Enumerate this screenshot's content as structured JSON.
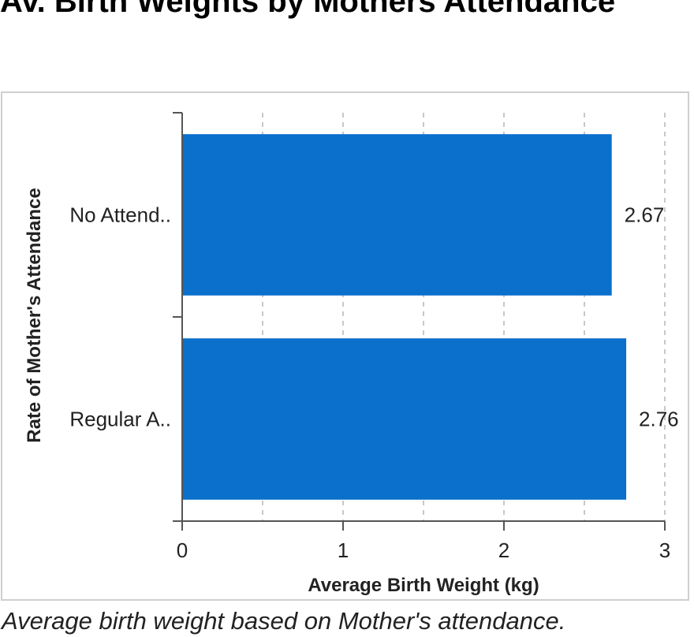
{
  "title": "Av. Birth Weights by Mothers Attendance",
  "caption": "Average birth weight based on Mother's attendance.",
  "chart_data": {
    "type": "bar",
    "orientation": "horizontal",
    "categories": [
      "No Attend..",
      "Regular A.."
    ],
    "values": [
      2.67,
      2.76
    ],
    "data_labels": [
      "2.67",
      "2.76"
    ],
    "xlabel": "Average Birth Weight (kg)",
    "ylabel": "Rate of Mother's Attendance",
    "xlim": [
      0,
      3
    ],
    "xticks": [
      0,
      1,
      2,
      3
    ],
    "grid": "vertical dashed at 0.5 intervals",
    "bar_color": "#0b6fcc",
    "legend": "none"
  }
}
